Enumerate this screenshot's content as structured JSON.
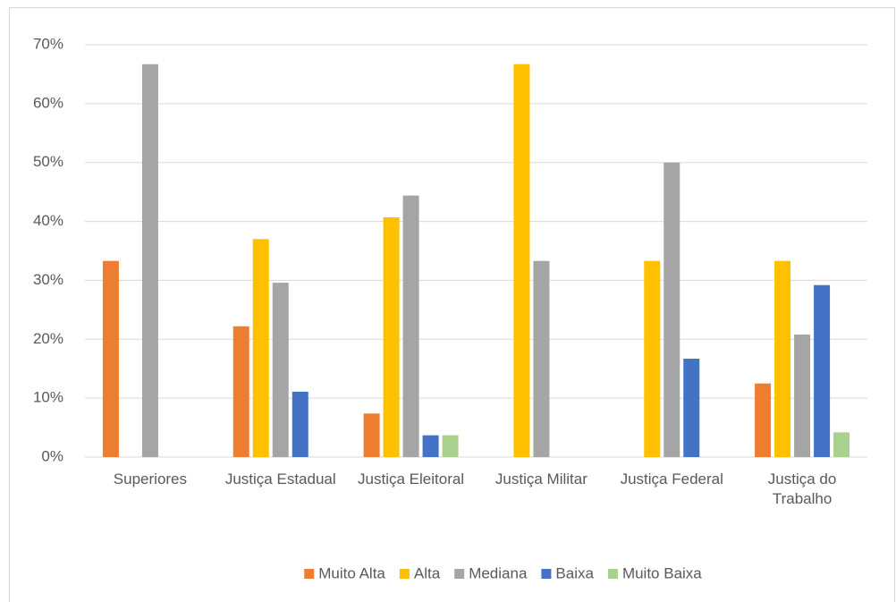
{
  "chart_data": {
    "type": "bar",
    "categories": [
      "Superiores",
      "Justiça Estadual",
      "Justiça Eleitoral",
      "Justiça Militar",
      "Justiça Federal",
      "Justiça do Trabalho"
    ],
    "series": [
      {
        "name": "Muito Alta",
        "color": "#ED7D31",
        "values": [
          33.3,
          22.2,
          7.4,
          0,
          0,
          12.5
        ]
      },
      {
        "name": "Alta",
        "color": "#FFC000",
        "values": [
          0,
          37.0,
          40.7,
          66.7,
          33.3,
          33.3
        ]
      },
      {
        "name": "Mediana",
        "color": "#A5A5A5",
        "values": [
          66.7,
          29.6,
          44.4,
          33.3,
          50.0,
          20.8
        ]
      },
      {
        "name": "Baixa",
        "color": "#4472C4",
        "values": [
          0,
          11.1,
          3.7,
          0,
          16.7,
          29.2
        ]
      },
      {
        "name": "Muito Baixa",
        "color": "#A9D18E",
        "values": [
          0,
          0,
          3.7,
          0,
          0,
          4.2
        ]
      }
    ],
    "ylim": [
      0,
      70
    ],
    "yticks": [
      {
        "value": 0,
        "label": "0%"
      },
      {
        "value": 10,
        "label": "10%"
      },
      {
        "value": 20,
        "label": "20%"
      },
      {
        "value": 30,
        "label": "30%"
      },
      {
        "value": 40,
        "label": "40%"
      },
      {
        "value": 50,
        "label": "50%"
      },
      {
        "value": 60,
        "label": "60%"
      },
      {
        "value": 70,
        "label": "70%"
      }
    ],
    "grid": true,
    "legend": "bottom"
  }
}
